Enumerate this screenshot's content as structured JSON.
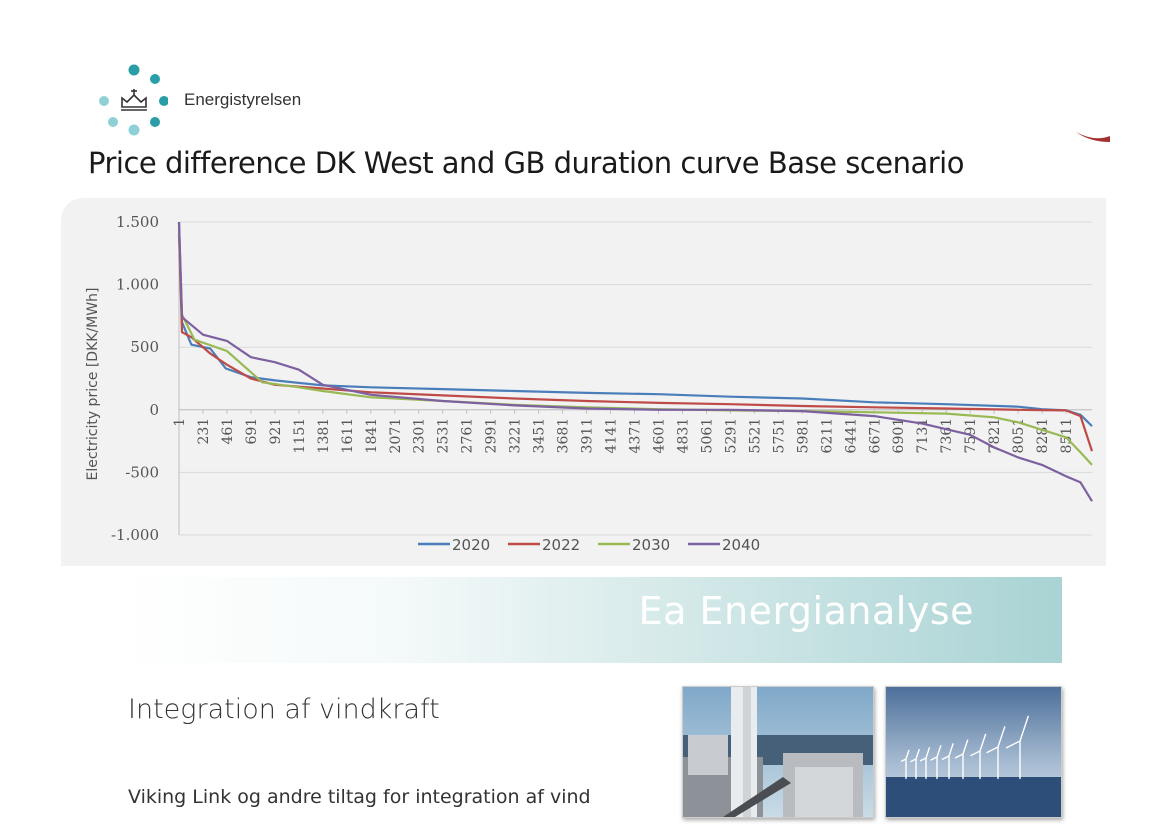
{
  "header": {
    "logo_text": "Energistyrelsen",
    "logo_dot_colors": [
      "#2a9ea6",
      "#8fd0d6",
      "#c5e7ea"
    ]
  },
  "slide": {
    "title": "Price difference DK West and GB duration curve Base scenario",
    "banner_text": "Ea Energianalyse",
    "sub_title": "Integration af vindkraft",
    "sub_text": "Viking Link og andre tiltag for integration af vind"
  },
  "photos": [
    {
      "name": "crane-platform-photo",
      "icon": "offshore-crane-icon"
    },
    {
      "name": "wind-turbines-photo",
      "icon": "wind-turbine-icon"
    }
  ],
  "chart_data": {
    "type": "line",
    "title": "",
    "xlabel": "",
    "ylabel": "Electricity price [DKK/MWh]",
    "ylim": [
      -1000,
      1500
    ],
    "xlim": [
      1,
      8760
    ],
    "y_ticks": [
      1500,
      1000,
      500,
      0,
      -500,
      -1000
    ],
    "y_tick_labels": [
      "1.500",
      "1.000",
      "500",
      "0",
      "-500",
      "-1.000"
    ],
    "x_tick_labels": [
      "1",
      "231",
      "461",
      "691",
      "921",
      "1151",
      "1381",
      "1611",
      "1841",
      "2071",
      "2301",
      "2531",
      "2761",
      "2991",
      "3221",
      "3451",
      "3681",
      "3911",
      "4141",
      "4371",
      "4601",
      "4831",
      "5061",
      "5291",
      "5521",
      "5751",
      "5981",
      "6211",
      "6441",
      "6671",
      "6901",
      "7131",
      "7361",
      "7591",
      "7821",
      "8051",
      "8281",
      "8511"
    ],
    "grid": true,
    "legend_position": "bottom",
    "series": [
      {
        "name": "2020",
        "color": "#4a7ebb",
        "points": [
          [
            1,
            1500
          ],
          [
            30,
            700
          ],
          [
            120,
            520
          ],
          [
            300,
            490
          ],
          [
            450,
            330
          ],
          [
            691,
            260
          ],
          [
            921,
            235
          ],
          [
            1381,
            195
          ],
          [
            1841,
            180
          ],
          [
            2531,
            165
          ],
          [
            3221,
            150
          ],
          [
            3911,
            135
          ],
          [
            4601,
            125
          ],
          [
            5291,
            105
          ],
          [
            5981,
            90
          ],
          [
            6671,
            60
          ],
          [
            7361,
            45
          ],
          [
            8051,
            25
          ],
          [
            8281,
            5
          ],
          [
            8511,
            -5
          ],
          [
            8650,
            -40
          ],
          [
            8760,
            -130
          ]
        ]
      },
      {
        "name": "2022",
        "color": "#be4b48",
        "points": [
          [
            1,
            1400
          ],
          [
            30,
            620
          ],
          [
            120,
            580
          ],
          [
            300,
            450
          ],
          [
            461,
            360
          ],
          [
            691,
            250
          ],
          [
            921,
            200
          ],
          [
            1381,
            170
          ],
          [
            1841,
            140
          ],
          [
            2531,
            115
          ],
          [
            3221,
            90
          ],
          [
            3911,
            70
          ],
          [
            4601,
            55
          ],
          [
            5291,
            45
          ],
          [
            5981,
            30
          ],
          [
            6671,
            20
          ],
          [
            7361,
            10
          ],
          [
            8051,
            0
          ],
          [
            8281,
            -2
          ],
          [
            8511,
            -5
          ],
          [
            8650,
            -50
          ],
          [
            8760,
            -330
          ]
        ]
      },
      {
        "name": "2030",
        "color": "#98b954",
        "points": [
          [
            1,
            1450
          ],
          [
            30,
            760
          ],
          [
            150,
            560
          ],
          [
            461,
            470
          ],
          [
            691,
            300
          ],
          [
            800,
            220
          ],
          [
            1151,
            180
          ],
          [
            1381,
            150
          ],
          [
            1841,
            100
          ],
          [
            2531,
            70
          ],
          [
            3221,
            40
          ],
          [
            3911,
            20
          ],
          [
            4601,
            5
          ],
          [
            5291,
            -5
          ],
          [
            5981,
            -10
          ],
          [
            6671,
            -20
          ],
          [
            7361,
            -30
          ],
          [
            7821,
            -60
          ],
          [
            8051,
            -100
          ],
          [
            8281,
            -160
          ],
          [
            8511,
            -220
          ],
          [
            8650,
            -340
          ],
          [
            8760,
            -440
          ]
        ]
      },
      {
        "name": "2040",
        "color": "#7d60a0",
        "points": [
          [
            1,
            1500
          ],
          [
            30,
            740
          ],
          [
            231,
            600
          ],
          [
            461,
            550
          ],
          [
            691,
            420
          ],
          [
            921,
            380
          ],
          [
            1151,
            320
          ],
          [
            1381,
            200
          ],
          [
            1841,
            120
          ],
          [
            2531,
            70
          ],
          [
            3221,
            35
          ],
          [
            3911,
            10
          ],
          [
            4601,
            0
          ],
          [
            5291,
            0
          ],
          [
            5981,
            -10
          ],
          [
            6671,
            -50
          ],
          [
            7131,
            -110
          ],
          [
            7591,
            -200
          ],
          [
            7821,
            -300
          ],
          [
            8051,
            -380
          ],
          [
            8281,
            -440
          ],
          [
            8511,
            -530
          ],
          [
            8650,
            -580
          ],
          [
            8760,
            -730
          ]
        ]
      }
    ]
  }
}
